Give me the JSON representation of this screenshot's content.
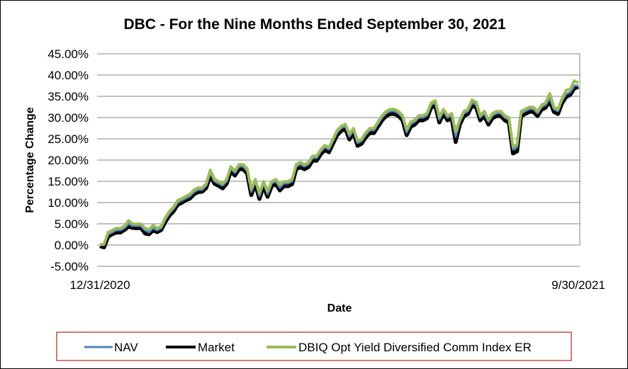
{
  "chart_data": {
    "type": "line",
    "title": "DBC - For the Nine Months Ended September 30, 2021",
    "xlabel": "Date",
    "ylabel": "Percentage Change",
    "ylim": [
      -5,
      45
    ],
    "yticks": [
      "45.00%",
      "40.00%",
      "35.00%",
      "30.00%",
      "25.00%",
      "20.00%",
      "15.00%",
      "10.00%",
      "5.00%",
      "0.00%",
      "-5.00%"
    ],
    "xticks": [
      "12/31/2020",
      "9/30/2021"
    ],
    "grid": "horizontal",
    "legend_position": "bottom",
    "series": [
      {
        "name": "NAV",
        "color": "#4F81BD",
        "values": [
          0.0,
          0.0,
          2.5,
          3.0,
          3.5,
          3.5,
          4.0,
          5.0,
          4.5,
          4.5,
          4.5,
          3.5,
          3.0,
          4.0,
          3.5,
          4.0,
          6.0,
          7.5,
          8.5,
          10.0,
          10.5,
          11.0,
          11.5,
          12.5,
          13.0,
          13.0,
          14.0,
          17.0,
          15.0,
          14.5,
          14.0,
          15.0,
          18.0,
          17.0,
          18.5,
          18.5,
          17.5,
          12.5,
          15.0,
          11.5,
          14.5,
          12.0,
          14.5,
          15.0,
          13.5,
          14.5,
          14.5,
          15.0,
          18.5,
          19.0,
          18.5,
          19.0,
          20.5,
          20.5,
          22.0,
          23.0,
          22.5,
          24.5,
          26.5,
          27.5,
          28.0,
          25.5,
          27.0,
          24.0,
          24.5,
          26.0,
          27.0,
          27.0,
          28.5,
          30.0,
          31.0,
          31.5,
          31.5,
          31.0,
          30.0,
          26.5,
          28.5,
          29.0,
          30.0,
          30.0,
          30.5,
          33.0,
          33.5,
          29.5,
          31.5,
          30.0,
          30.5,
          25.5,
          29.0,
          31.0,
          31.5,
          33.5,
          33.0,
          30.0,
          31.0,
          29.0,
          30.5,
          31.0,
          31.0,
          30.0,
          29.5,
          22.5,
          23.0,
          31.0,
          31.5,
          32.0,
          32.0,
          31.0,
          32.5,
          33.0,
          34.5,
          32.0,
          31.5,
          34.0,
          35.5,
          36.0,
          37.5,
          37.5
        ]
      },
      {
        "name": "Market",
        "color": "#000000",
        "values": [
          0.0,
          -0.3,
          2.2,
          2.8,
          3.2,
          3.2,
          3.8,
          4.6,
          4.3,
          4.2,
          4.3,
          3.0,
          2.8,
          3.7,
          3.3,
          3.8,
          5.7,
          7.2,
          8.2,
          9.7,
          10.2,
          10.8,
          11.2,
          12.2,
          12.7,
          12.8,
          13.7,
          16.6,
          14.7,
          14.2,
          13.6,
          14.7,
          17.6,
          16.6,
          18.1,
          18.1,
          17.1,
          12.0,
          14.6,
          11.1,
          14.1,
          11.6,
          14.1,
          14.6,
          13.1,
          14.1,
          14.1,
          14.6,
          18.1,
          18.6,
          18.1,
          18.6,
          20.1,
          20.1,
          21.6,
          22.6,
          22.1,
          24.1,
          26.1,
          27.1,
          27.6,
          25.1,
          26.6,
          23.6,
          24.1,
          25.6,
          26.6,
          26.6,
          28.1,
          29.6,
          30.6,
          31.1,
          31.1,
          30.6,
          29.6,
          26.1,
          28.1,
          28.6,
          29.6,
          29.6,
          30.1,
          32.6,
          33.1,
          29.1,
          31.1,
          29.6,
          30.1,
          24.5,
          28.6,
          30.6,
          31.1,
          33.1,
          32.6,
          29.6,
          30.6,
          28.6,
          30.1,
          30.6,
          30.6,
          29.6,
          29.1,
          21.8,
          22.3,
          30.6,
          31.1,
          31.6,
          31.6,
          30.6,
          32.1,
          32.6,
          34.1,
          31.6,
          31.1,
          33.6,
          35.1,
          35.6,
          37.1,
          37.5
        ]
      },
      {
        "name": "DBIQ Opt Yield Diversified Comm Index ER",
        "color": "#9BBB59",
        "values": [
          0.0,
          0.0,
          2.8,
          3.3,
          3.8,
          3.8,
          4.3,
          5.6,
          4.8,
          4.8,
          4.8,
          3.8,
          3.5,
          4.5,
          3.8,
          4.3,
          6.3,
          7.8,
          8.8,
          10.3,
          10.8,
          11.3,
          11.8,
          12.8,
          13.3,
          13.3,
          14.3,
          17.5,
          15.3,
          14.8,
          14.3,
          15.3,
          18.3,
          17.3,
          18.8,
          18.8,
          17.8,
          13.0,
          15.3,
          12.0,
          14.8,
          12.5,
          14.8,
          15.3,
          14.0,
          14.8,
          14.8,
          15.3,
          18.8,
          19.3,
          18.8,
          19.3,
          20.8,
          20.8,
          22.3,
          23.3,
          22.8,
          24.8,
          26.8,
          27.8,
          28.3,
          26.0,
          27.3,
          24.3,
          24.8,
          26.3,
          27.3,
          27.3,
          28.8,
          30.3,
          31.3,
          31.8,
          31.8,
          31.3,
          30.3,
          27.0,
          28.8,
          29.3,
          30.3,
          30.3,
          30.8,
          33.3,
          33.8,
          30.0,
          31.8,
          30.3,
          30.8,
          26.5,
          29.3,
          31.3,
          31.8,
          34.0,
          33.5,
          30.3,
          31.3,
          29.3,
          30.8,
          31.3,
          31.3,
          30.3,
          29.8,
          23.0,
          23.5,
          31.3,
          31.8,
          32.3,
          32.3,
          31.3,
          32.8,
          33.3,
          35.5,
          32.3,
          31.8,
          34.3,
          36.3,
          36.5,
          38.5,
          38.0
        ]
      }
    ]
  }
}
